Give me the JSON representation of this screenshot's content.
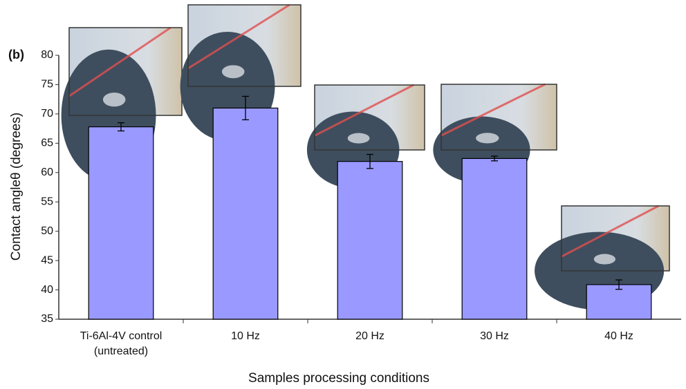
{
  "chart_data": {
    "type": "bar",
    "panel_label": "(b)",
    "x_label": "Samples processing conditions",
    "y_label": "Contact angleθ (degrees)",
    "categories": [
      "Ti-6Al-4V control (untreated)",
      "10 Hz",
      "20 Hz",
      "30 Hz",
      "40 Hz"
    ],
    "values": [
      67.8,
      71,
      61.9,
      62.4,
      40.9
    ],
    "errors": [
      0.7,
      2,
      1.2,
      0.4,
      0.8
    ],
    "color": "#9999ff",
    "ylim": [
      35,
      80
    ],
    "yticks": [
      35,
      40,
      45,
      50,
      55,
      60,
      65,
      70,
      75,
      80
    ],
    "grid": false
  }
}
